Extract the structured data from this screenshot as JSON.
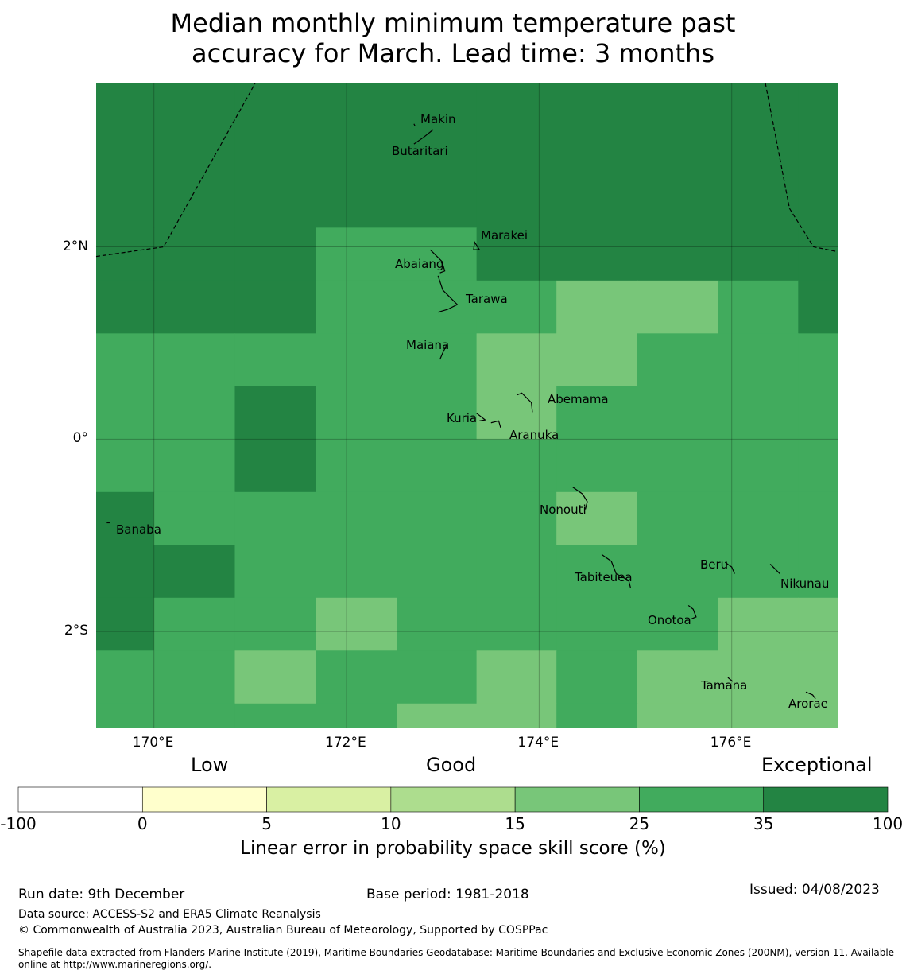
{
  "title_line1": "Median monthly minimum temperature past",
  "title_line2": "accuracy for March. Lead time: 3 months",
  "map": {
    "lon_range": [
      169.4,
      177.1
    ],
    "lat_range": [
      -3.0,
      3.7
    ],
    "lon_ticks": [
      {
        "value": 170,
        "label": "170°E"
      },
      {
        "value": 172,
        "label": "172°E"
      },
      {
        "value": 174,
        "label": "174°E"
      },
      {
        "value": 176,
        "label": "176°E"
      }
    ],
    "lat_ticks": [
      {
        "value": 2,
        "label": "2°N"
      },
      {
        "value": 0,
        "label": "0°"
      },
      {
        "value": -2,
        "label": "2°S"
      }
    ],
    "colors": {
      "25-35": "#41ab5d",
      "35-100": "#238443",
      "15-25": "#78c679"
    },
    "grid_lon_edges": [
      169.4,
      170.0,
      170.84,
      171.68,
      172.52,
      173.35,
      174.18,
      175.02,
      175.86,
      176.69,
      177.1
    ],
    "grid_lat_edges": [
      3.7,
      2.2,
      1.65,
      1.1,
      0.55,
      0.0,
      -0.55,
      -1.1,
      -1.65,
      -2.2,
      -2.75,
      -3.0
    ],
    "grid_classes": [
      [
        "35-100",
        "35-100",
        "35-100",
        "35-100",
        "35-100",
        "35-100",
        "35-100",
        "35-100",
        "35-100",
        "35-100"
      ],
      [
        "35-100",
        "35-100",
        "35-100",
        "25-35",
        "25-35",
        "35-100",
        "35-100",
        "35-100",
        "35-100",
        "35-100"
      ],
      [
        "35-100",
        "35-100",
        "35-100",
        "25-35",
        "25-35",
        "25-35",
        "15-25",
        "15-25",
        "25-35",
        "35-100"
      ],
      [
        "25-35",
        "25-35",
        "25-35",
        "25-35",
        "25-35",
        "15-25",
        "15-25",
        "25-35",
        "25-35",
        "25-35"
      ],
      [
        "25-35",
        "25-35",
        "35-100",
        "25-35",
        "25-35",
        "15-25",
        "25-35",
        "25-35",
        "25-35",
        "25-35"
      ],
      [
        "25-35",
        "25-35",
        "35-100",
        "25-35",
        "25-35",
        "25-35",
        "25-35",
        "25-35",
        "25-35",
        "25-35"
      ],
      [
        "35-100",
        "25-35",
        "25-35",
        "25-35",
        "25-35",
        "25-35",
        "15-25",
        "25-35",
        "25-35",
        "25-35"
      ],
      [
        "35-100",
        "35-100",
        "25-35",
        "25-35",
        "25-35",
        "25-35",
        "25-35",
        "25-35",
        "25-35",
        "25-35"
      ],
      [
        "35-100",
        "25-35",
        "25-35",
        "15-25",
        "25-35",
        "25-35",
        "25-35",
        "25-35",
        "15-25",
        "15-25"
      ],
      [
        "25-35",
        "25-35",
        "15-25",
        "25-35",
        "25-35",
        "15-25",
        "25-35",
        "15-25",
        "15-25",
        "15-25"
      ],
      [
        "25-35",
        "25-35",
        "25-35",
        "25-35",
        "15-25",
        "15-25",
        "25-35",
        "15-25",
        "15-25",
        "15-25"
      ]
    ],
    "islands": [
      {
        "name": "Makin",
        "lon": 172.95,
        "lat": 3.28,
        "shape": [
          [
            -0.25,
            0.0
          ],
          [
            -0.24,
            -0.02
          ]
        ]
      },
      {
        "name": "Butaritari",
        "lon": 172.75,
        "lat": 3.07,
        "shape": [
          [
            -0.05,
            0.0
          ],
          [
            0.05,
            0.07
          ],
          [
            0.15,
            0.15
          ]
        ]
      },
      {
        "name": "Marakei",
        "lon": 173.35,
        "lat": 2.0,
        "shape": [
          [
            -0.03,
            -0.03
          ],
          [
            -0.02,
            0.05
          ],
          [
            0.03,
            -0.03
          ],
          [
            -0.03,
            -0.03
          ]
        ]
      },
      {
        "name": "Abaiang",
        "lon": 172.92,
        "lat": 1.85,
        "shape": [
          [
            -0.05,
            0.12
          ],
          [
            0.07,
            0.0
          ],
          [
            0.1,
            -0.1
          ],
          [
            0.05,
            -0.12
          ]
        ]
      },
      {
        "name": "Tarawa",
        "lon": 173.0,
        "lat": 1.45,
        "shape": [
          [
            -0.05,
            0.25
          ],
          [
            0.0,
            0.1
          ],
          [
            0.15,
            -0.05
          ],
          [
            0.05,
            -0.1
          ],
          [
            -0.05,
            -0.13
          ]
        ]
      },
      {
        "name": "Maiana",
        "lon": 173.0,
        "lat": 0.95,
        "shape": [
          [
            0.05,
            0.05
          ],
          [
            0.0,
            -0.05
          ],
          [
            -0.03,
            -0.12
          ]
        ]
      },
      {
        "name": "Abemama",
        "lon": 173.87,
        "lat": 0.38,
        "shape": [
          [
            -0.1,
            0.08
          ],
          [
            -0.05,
            0.1
          ],
          [
            0.05,
            0.0
          ],
          [
            0.06,
            -0.1
          ]
        ]
      },
      {
        "name": "Kuria",
        "lon": 173.4,
        "lat": 0.22,
        "shape": [
          [
            -0.05,
            0.05
          ],
          [
            0.04,
            -0.02
          ],
          [
            -0.02,
            -0.03
          ]
        ]
      },
      {
        "name": "Aranuka",
        "lon": 173.6,
        "lat": 0.17,
        "shape": [
          [
            -0.1,
            0.0
          ],
          [
            -0.02,
            0.02
          ],
          [
            0.0,
            -0.05
          ]
        ]
      },
      {
        "name": "Nonouti",
        "lon": 174.4,
        "lat": -0.65,
        "shape": [
          [
            -0.05,
            0.15
          ],
          [
            0.05,
            0.08
          ],
          [
            0.1,
            0.0
          ],
          [
            0.08,
            -0.08
          ]
        ]
      },
      {
        "name": "Banaba",
        "lon": 169.53,
        "lat": -0.87,
        "shape": [
          [
            -0.02,
            0.0
          ],
          [
            0.01,
            0.0
          ]
        ]
      },
      {
        "name": "Tabiteuea",
        "lon": 174.85,
        "lat": -1.35,
        "shape": [
          [
            -0.2,
            0.15
          ],
          [
            -0.1,
            0.08
          ],
          [
            -0.05,
            -0.05
          ],
          [
            0.08,
            -0.12
          ],
          [
            0.1,
            -0.2
          ]
        ]
      },
      {
        "name": "Beru",
        "lon": 175.98,
        "lat": -1.33,
        "shape": [
          [
            -0.05,
            0.05
          ],
          [
            0.02,
            0.0
          ],
          [
            0.05,
            -0.07
          ]
        ]
      },
      {
        "name": "Nikunau",
        "lon": 176.45,
        "lat": -1.35,
        "shape": [
          [
            -0.05,
            0.05
          ],
          [
            0.05,
            -0.05
          ]
        ]
      },
      {
        "name": "Onotoa",
        "lon": 175.55,
        "lat": -1.8,
        "shape": [
          [
            0.0,
            0.07
          ],
          [
            0.05,
            0.03
          ],
          [
            0.08,
            -0.05
          ],
          [
            0.03,
            -0.07
          ]
        ]
      },
      {
        "name": "Tamana",
        "lon": 175.98,
        "lat": -2.5,
        "shape": [
          [
            -0.02,
            0.02
          ],
          [
            0.03,
            -0.02
          ]
        ]
      },
      {
        "name": "Arorae",
        "lon": 176.82,
        "lat": -2.63,
        "shape": [
          [
            -0.05,
            0.0
          ],
          [
            0.02,
            -0.03
          ],
          [
            0.05,
            -0.07
          ]
        ]
      }
    ],
    "label_offsets_note": "labels placed near each island"
  },
  "colorbar": {
    "category_labels": [
      "Low",
      "Good",
      "Exceptional"
    ],
    "tick_labels": [
      "-100",
      "0",
      "5",
      "10",
      "15",
      "25",
      "35",
      "100"
    ],
    "segment_colors": [
      "#ffffff",
      "#ffffcc",
      "#d9f0a3",
      "#addd8e",
      "#78c679",
      "#41ab5d",
      "#238443"
    ],
    "label": "Linear error in probability space skill score (%)"
  },
  "footer": {
    "run_date": "Run date: 9th December",
    "base_period": "Base period: 1981-2018",
    "issued": "Issued: 04/08/2023",
    "data_source": "Data source: ACCESS-S2 and ERA5 Climate Reanalysis",
    "copyright": "© Commonwealth of Australia 2023, Australian Bureau of Meteorology, Supported by COSPPac",
    "shapefile": "Shapefile data extracted from Flanders Marine Institute (2019), Maritime Boundaries Geodatabase: Maritime Boundaries and Exclusive Economic Zones (200NM), version 11. Available online at http://www.marineregions.org/."
  }
}
